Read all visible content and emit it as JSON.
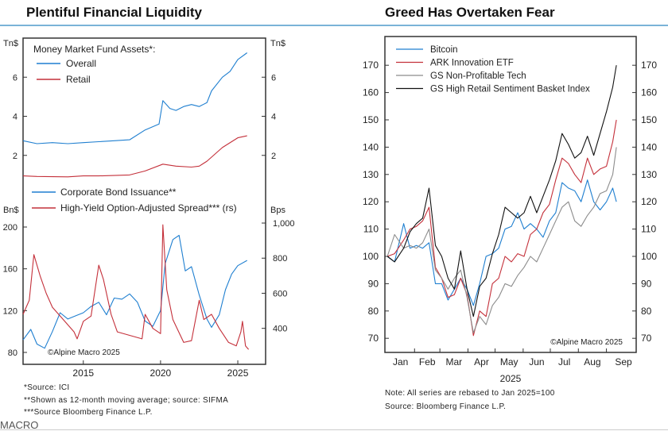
{
  "left_title": "Plentiful Financial Liquidity",
  "right_title": "Greed Has Overtaken Fear",
  "chart_data": [
    {
      "type": "line",
      "ylabel_left": "Tn$",
      "ylabel_right": "Tn$",
      "legend_title": "Money Market Fund Assets*:",
      "ylim": [
        0,
        8
      ],
      "xlim": [
        2011.1,
        2026.8
      ],
      "yticks": [
        2,
        4,
        6
      ],
      "series": [
        {
          "name": "Overall",
          "color": "#1f7fd0",
          "x": [
            2011.1,
            2012,
            2013,
            2014,
            2015,
            2016,
            2017,
            2018,
            2019,
            2019.9,
            2020.15,
            2020.6,
            2021,
            2021.5,
            2022,
            2022.5,
            2023,
            2023.3,
            2024,
            2024.5,
            2025,
            2025.6
          ],
          "y": [
            2.75,
            2.6,
            2.65,
            2.6,
            2.65,
            2.7,
            2.75,
            2.8,
            3.3,
            3.6,
            4.8,
            4.4,
            4.3,
            4.5,
            4.6,
            4.5,
            4.7,
            5.3,
            6.0,
            6.3,
            6.9,
            7.25
          ]
        },
        {
          "name": "Retail",
          "color": "#c4303a",
          "x": [
            2011.1,
            2012,
            2014,
            2015,
            2016,
            2018,
            2019,
            2020.15,
            2021,
            2022,
            2022.5,
            2023,
            2024,
            2025,
            2025.6
          ],
          "y": [
            0.95,
            0.92,
            0.9,
            0.95,
            0.95,
            1.0,
            1.2,
            1.55,
            1.45,
            1.4,
            1.45,
            1.7,
            2.4,
            2.9,
            3.0
          ]
        }
      ]
    },
    {
      "type": "line",
      "ylabel_left": "Bn$",
      "ylabel_right": "Bps",
      "ylim_left": [
        68,
        207
      ],
      "ylim_right": [
        195,
        1025
      ],
      "xlim": [
        2011.1,
        2026.8
      ],
      "yticks_left": [
        80,
        120,
        160,
        200
      ],
      "yticks_right": [
        400,
        600,
        800,
        1000
      ],
      "ytick_labels_right": [
        "400",
        "600",
        "800",
        "1,000"
      ],
      "xticks": [
        2015,
        2020,
        2025
      ],
      "annotation": "©Alpine Macro 2025",
      "series": [
        {
          "name": "Corporate Bond Issuance**",
          "axis": "left",
          "color": "#1f7fd0",
          "x": [
            2011.1,
            2011.6,
            2012,
            2012.5,
            2013,
            2013.5,
            2014,
            2014.5,
            2015,
            2015.5,
            2016,
            2016.5,
            2017,
            2017.5,
            2018,
            2018.5,
            2019,
            2019.5,
            2020,
            2020.3,
            2020.8,
            2021.2,
            2021.6,
            2022,
            2022.5,
            2023,
            2023.3,
            2023.8,
            2024.2,
            2024.6,
            2025,
            2025.6
          ],
          "y": [
            92,
            102,
            88,
            84,
            100,
            118,
            112,
            115,
            118,
            124,
            128,
            116,
            132,
            131,
            136,
            128,
            110,
            105,
            120,
            165,
            188,
            192,
            158,
            162,
            135,
            112,
            104,
            116,
            140,
            155,
            163,
            168
          ]
        },
        {
          "name": "High-Yield Option-Adjusted Spread*** (rs)",
          "axis": "right",
          "color": "#c4303a",
          "x": [
            2011.1,
            2011.5,
            2011.8,
            2012.2,
            2012.6,
            2013,
            2013.6,
            2014.4,
            2014.6,
            2015,
            2015.5,
            2016,
            2016.3,
            2016.8,
            2017.2,
            2018,
            2018.8,
            2019,
            2019.5,
            2020,
            2020.15,
            2020.4,
            2020.8,
            2021.5,
            2022,
            2022.5,
            2022.8,
            2023.3,
            2023.8,
            2024.4,
            2024.9,
            2025.2,
            2025.3,
            2025.5,
            2025.7
          ],
          "y": [
            480,
            560,
            820,
            700,
            600,
            520,
            460,
            380,
            340,
            440,
            470,
            760,
            680,
            480,
            380,
            360,
            340,
            480,
            400,
            370,
            990,
            620,
            450,
            320,
            330,
            560,
            450,
            480,
            400,
            320,
            300,
            380,
            440,
            300,
            280
          ]
        }
      ]
    },
    {
      "type": "line",
      "xlabel": "2025",
      "ylim": [
        65,
        180
      ],
      "yticks": [
        70,
        80,
        90,
        100,
        110,
        120,
        130,
        140,
        150,
        160,
        170
      ],
      "months": [
        "Jan",
        "Feb",
        "Mar",
        "Apr",
        "May",
        "Jun",
        "Jul",
        "Aug",
        "Sep"
      ],
      "annotation": "©Alpine Macro 2025",
      "x": [
        "2025-01-02",
        "2025-01-10",
        "2025-01-20",
        "2025-01-27",
        "2025-02-03",
        "2025-02-10",
        "2025-02-17",
        "2025-02-24",
        "2025-03-03",
        "2025-03-10",
        "2025-03-17",
        "2025-03-24",
        "2025-03-31",
        "2025-04-07",
        "2025-04-14",
        "2025-04-21",
        "2025-04-28",
        "2025-05-05",
        "2025-05-12",
        "2025-05-19",
        "2025-05-26",
        "2025-06-02",
        "2025-06-09",
        "2025-06-16",
        "2025-06-23",
        "2025-06-30",
        "2025-07-07",
        "2025-07-14",
        "2025-07-21",
        "2025-07-28",
        "2025-08-04",
        "2025-08-11",
        "2025-08-18",
        "2025-08-25",
        "2025-09-01",
        "2025-09-08",
        "2025-09-12"
      ],
      "series": [
        {
          "name": "Bitcoin",
          "color": "#1f7fd0",
          "values": [
            100,
            98,
            112,
            103,
            104,
            103,
            105,
            90,
            90,
            84,
            88,
            92,
            88,
            82,
            90,
            100,
            101,
            103,
            110,
            111,
            116,
            110,
            112,
            110,
            107,
            113,
            116,
            127,
            125,
            124,
            120,
            128,
            120,
            117,
            120,
            125,
            120
          ]
        },
        {
          "name": "ARK Innovation ETF",
          "color": "#c4303a",
          "values": [
            100,
            101,
            106,
            110,
            111,
            113,
            118,
            96,
            92,
            85,
            86,
            92,
            86,
            71,
            80,
            78,
            90,
            92,
            100,
            98,
            101,
            100,
            108,
            110,
            116,
            119,
            128,
            136,
            134,
            130,
            127,
            136,
            130,
            132,
            133,
            142,
            150
          ]
        },
        {
          "name": "GS Non-Profitable Tech",
          "color": "#8c8c8c",
          "values": [
            100,
            108,
            103,
            104,
            103,
            105,
            110,
            95,
            92,
            88,
            92,
            95,
            85,
            72,
            78,
            75,
            82,
            85,
            90,
            89,
            93,
            96,
            100,
            98,
            103,
            108,
            113,
            118,
            120,
            113,
            111,
            115,
            118,
            123,
            124,
            130,
            140
          ]
        },
        {
          "name": "GS High Retail Sentiment Basket Index",
          "color": "#111111",
          "values": [
            100,
            98,
            103,
            109,
            112,
            114,
            125,
            104,
            100,
            92,
            88,
            102,
            88,
            78,
            89,
            92,
            101,
            108,
            118,
            116,
            114,
            116,
            122,
            116,
            122,
            128,
            135,
            145,
            141,
            136,
            138,
            144,
            137,
            145,
            153,
            162,
            170
          ]
        }
      ]
    }
  ],
  "left_notes": [
    "*Source: ICI",
    "**Shown as 12-month moving average; source: SIFMA",
    "***Source Bloomberg Finance L.P."
  ],
  "right_notes": [
    "Note: All series are rebased to Jan 2025=100",
    "Source: Bloomberg Finance L.P."
  ],
  "brand": "MACRO"
}
